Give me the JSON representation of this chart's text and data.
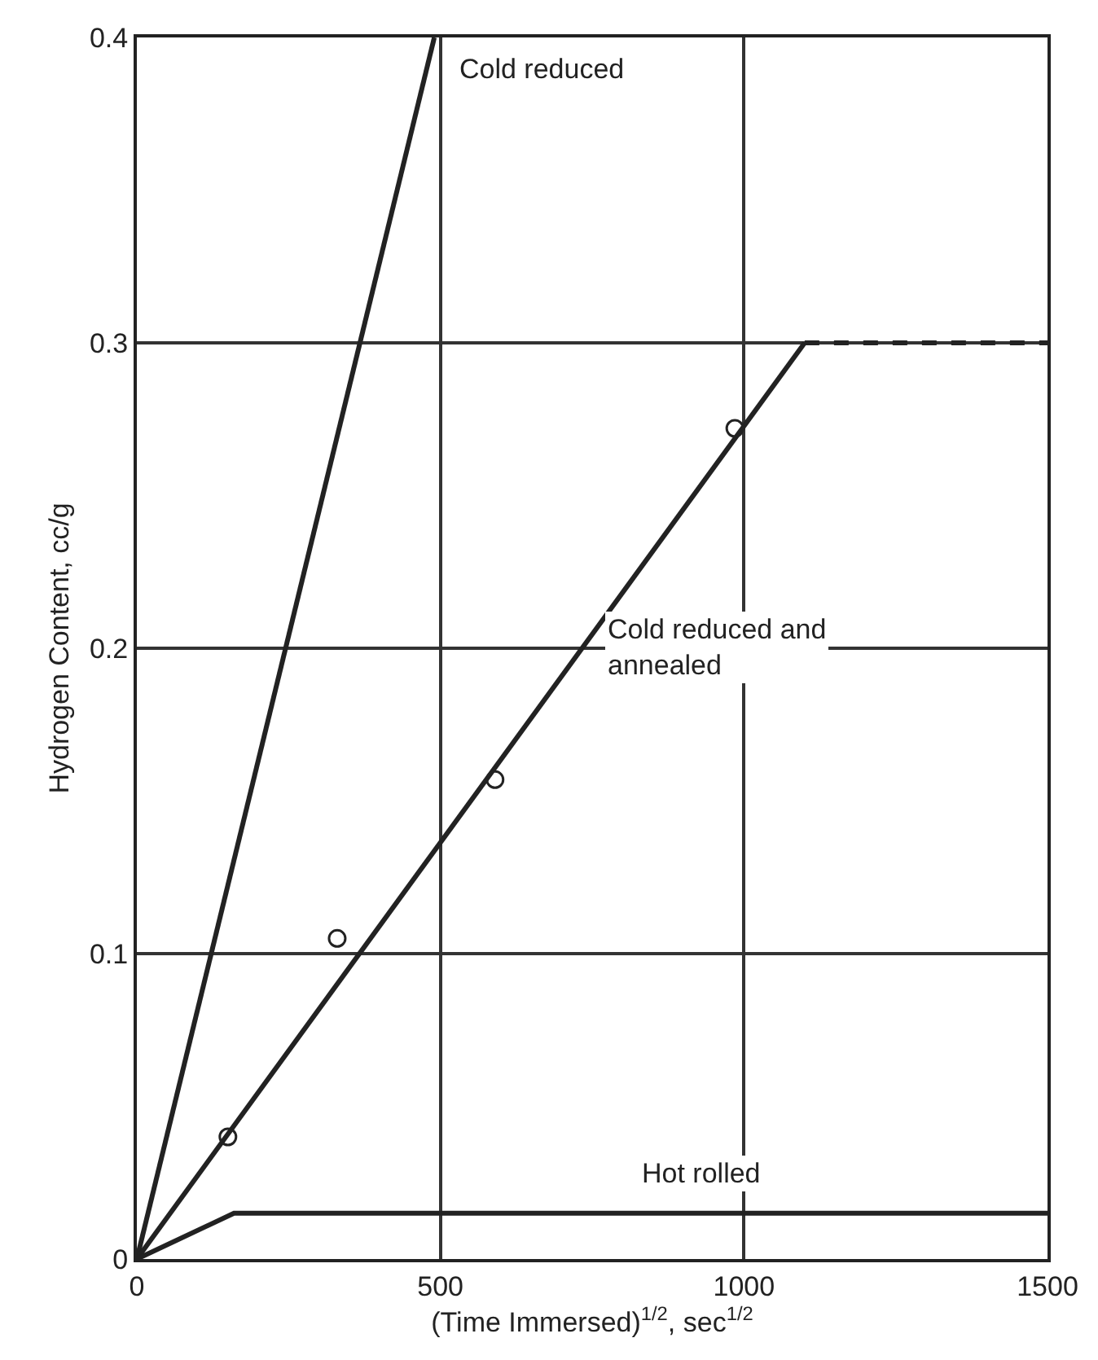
{
  "chart_data": {
    "type": "line",
    "xlabel": "(Time Immersed)$^{1/2}$, sec$^{1/2}$",
    "ylabel": "Hydrogen Content, cc/g",
    "xlim": [
      0,
      1500
    ],
    "xticks": [
      0,
      500,
      1000,
      1500
    ],
    "ylim": [
      0,
      0.4
    ],
    "yticks": [
      0,
      0.1,
      0.2,
      0.3,
      0.4
    ],
    "grid": true,
    "legend": false,
    "series": [
      {
        "name": "Cold reduced",
        "color": "#222222",
        "x": [
          0,
          490
        ],
        "values": [
          0,
          0.4
        ],
        "line_style": "solid",
        "marker": "none"
      },
      {
        "name": "Cold reduced and\nannealed",
        "color": "#222222",
        "x": [
          0,
          1100
        ],
        "values": [
          0,
          0.3
        ],
        "line_style": "solid",
        "marker": "none"
      },
      {
        "color": "#222222",
        "x": [
          1100,
          1500
        ],
        "values": [
          0.3,
          0.3
        ],
        "line_style": "dashed",
        "marker": "none"
      },
      {
        "name": "Hot rolled",
        "color": "#222222",
        "x": [
          0,
          160,
          1500
        ],
        "values": [
          0,
          0.015,
          0.015
        ],
        "line_style": "solid",
        "marker": "none"
      },
      {
        "type": "scatter",
        "color": "#222222",
        "x": [
          150,
          330,
          590,
          985
        ],
        "values": [
          0.04,
          0.105,
          0.157,
          0.272
        ],
        "marker": "circle"
      }
    ]
  }
}
